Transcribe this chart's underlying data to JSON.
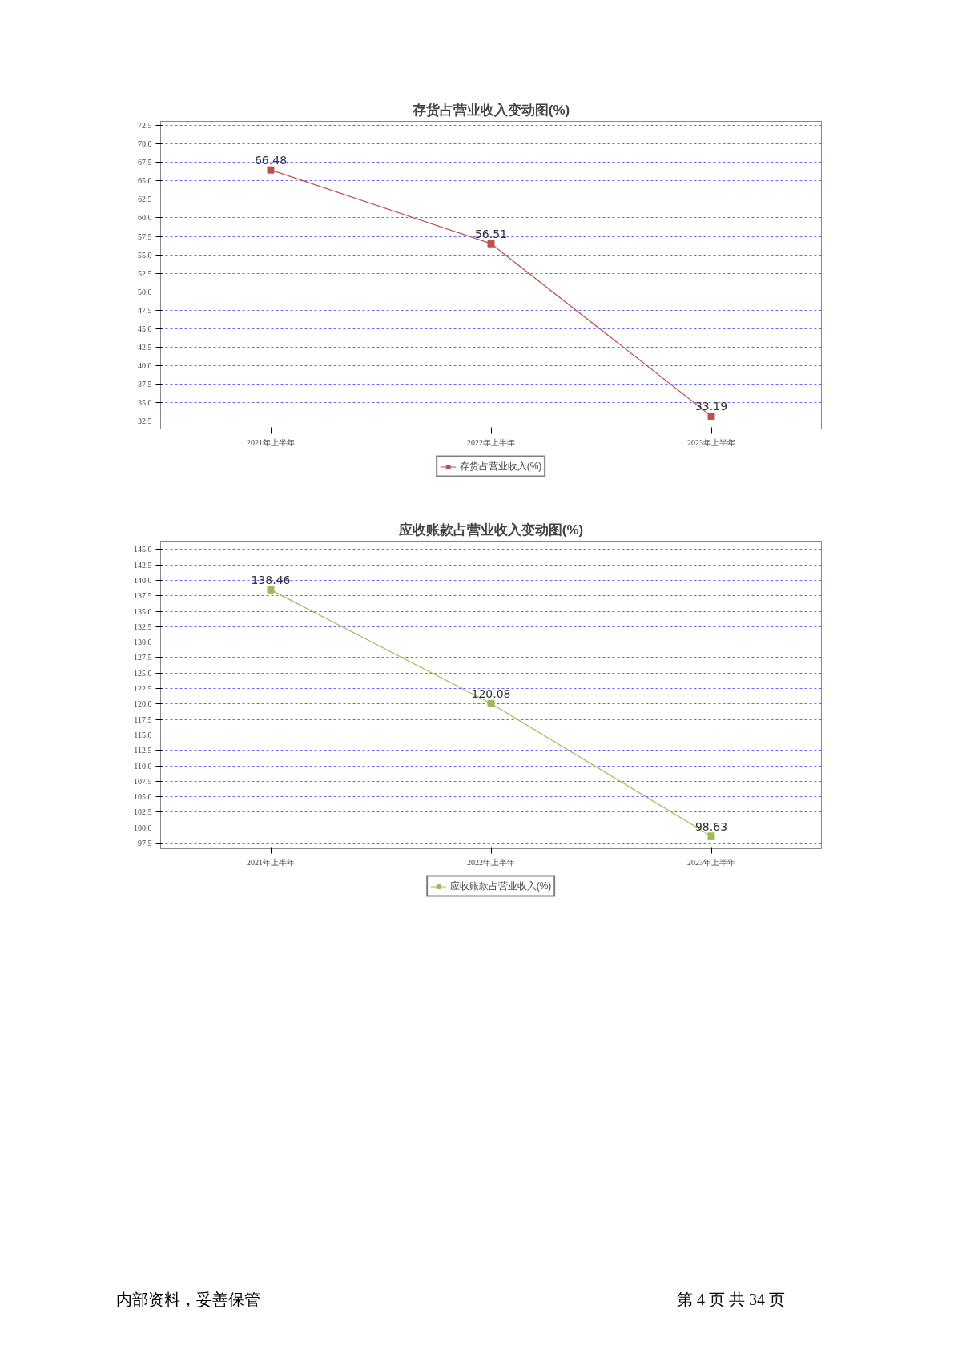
{
  "chart_data": [
    {
      "type": "line",
      "title": "存货占营业收入变动图(%)",
      "categories": [
        "2021年上半年",
        "2022年上半年",
        "2023年上半年"
      ],
      "series": [
        {
          "name": "存货占营业收入(%)",
          "color": "#c0504d",
          "values": [
            66.48,
            56.51,
            33.19
          ]
        }
      ],
      "ylim": [
        31.45,
        73.05
      ],
      "yticks": [
        {
          "value": 32.5,
          "label": "32.5"
        },
        {
          "value": 35,
          "label": "35.0"
        },
        {
          "value": 37.5,
          "label": "37.5"
        },
        {
          "value": 40,
          "label": "40.0"
        },
        {
          "value": 42.5,
          "label": "42.5"
        },
        {
          "value": 45,
          "label": "45.0"
        },
        {
          "value": 47.5,
          "label": "47.5"
        },
        {
          "value": 50,
          "label": "50.0"
        },
        {
          "value": 52.5,
          "label": "52.5"
        },
        {
          "value": 55,
          "label": "55.0"
        },
        {
          "value": 57.5,
          "label": "57.5"
        },
        {
          "value": 60,
          "label": "60.0"
        },
        {
          "value": 62.5,
          "label": "62.5"
        },
        {
          "value": 65,
          "label": "65.0"
        },
        {
          "value": 67.5,
          "label": "67.5"
        },
        {
          "value": 70,
          "label": "70.0"
        },
        {
          "value": 72.5,
          "label": "72.5"
        }
      ],
      "grid": "y",
      "legend": "bottom",
      "marker": "square",
      "data_labels": true
    },
    {
      "type": "line",
      "title": "应收账款占营业收入变动图(%)",
      "categories": [
        "2021年上半年",
        "2022年上半年",
        "2023年上半年"
      ],
      "series": [
        {
          "name": "应收账款占营业收入(%)",
          "color": "#9bbb59",
          "values": [
            138.46,
            120.08,
            98.63
          ]
        }
      ],
      "ylim": [
        96.6,
        146.35
      ],
      "yticks": [
        {
          "value": 97.5,
          "label": "97.5"
        },
        {
          "value": 100,
          "label": "100.0"
        },
        {
          "value": 102.5,
          "label": "102.5"
        },
        {
          "value": 105,
          "label": "105.0"
        },
        {
          "value": 107.5,
          "label": "107.5"
        },
        {
          "value": 110,
          "label": "110.0"
        },
        {
          "value": 112.5,
          "label": "112.5"
        },
        {
          "value": 115,
          "label": "115.0"
        },
        {
          "value": 117.5,
          "label": "117.5"
        },
        {
          "value": 120,
          "label": "120.0"
        },
        {
          "value": 122.5,
          "label": "122.5"
        },
        {
          "value": 125,
          "label": "125.0"
        },
        {
          "value": 127.5,
          "label": "127.5"
        },
        {
          "value": 130,
          "label": "130.0"
        },
        {
          "value": 132.5,
          "label": "132.5"
        },
        {
          "value": 135,
          "label": "135.0"
        },
        {
          "value": 137.5,
          "label": "137.5"
        },
        {
          "value": 140,
          "label": "140.0"
        },
        {
          "value": 142.5,
          "label": "142.5"
        },
        {
          "value": 145,
          "label": "145.0"
        }
      ],
      "grid": "y",
      "legend": "bottom",
      "marker": "square",
      "data_labels": true,
      "annotations": [
        "内部资料，妥善保管",
        "第 4 页   共 34 页"
      ]
    }
  ]
}
